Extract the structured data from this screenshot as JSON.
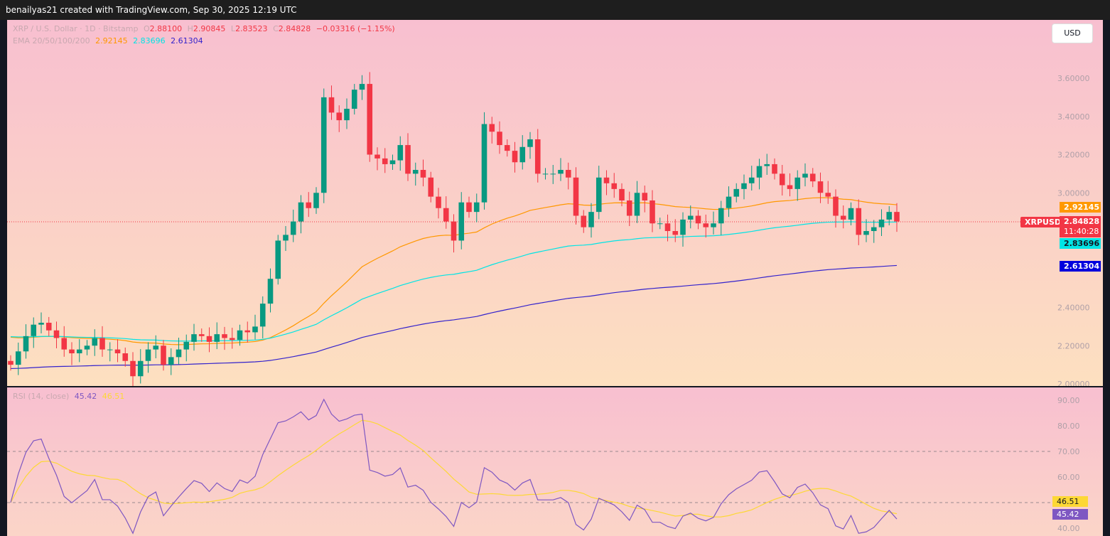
{
  "topbar": {
    "text": "benailyas21 created with TradingView.com, Sep 30, 2025 12:19 UTC"
  },
  "legend": {
    "symbol": "XRP / U.S. Dollar · 1D · Bitstamp",
    "o_label": "O",
    "o": "2.88100",
    "h_label": "H",
    "h": "2.90845",
    "l_label": "L",
    "l": "2.83523",
    "c_label": "C",
    "c": "2.84828",
    "change": "−0.03316 (−1.15%)",
    "ema_label": "EMA 20/50/100/200",
    "ema1": "2.92145",
    "ema2": "2.83696",
    "ema3": "2.61304"
  },
  "currency_button": "USD",
  "tags": {
    "symbol": "XRPUSD",
    "price": "2.84828",
    "countdown": "11:40:28",
    "ema1": "2.92145",
    "ema2": "2.83696",
    "ema3": "2.61304",
    "rsi_ma": "46.51",
    "rsi": "45.42"
  },
  "rsi_legend": {
    "label": "RSI (14, close)",
    "rsi": "45.42",
    "ma": "46.51"
  },
  "colors": {
    "up": "#089981",
    "down": "#f23645",
    "ema50": "#ff9800",
    "ema100": "#00e5e5",
    "ema200": "#3322cc",
    "rsi": "#7e57c2",
    "rsi_ma": "#fdd835"
  },
  "chart_data": [
    {
      "type": "candlestick",
      "title": "XRP / U.S. Dollar · 1D · Bitstamp",
      "ylim": [
        2.0,
        3.7
      ],
      "yticks": [
        "3.60000",
        "3.40000",
        "3.20000",
        "3.00000",
        "2.40000",
        "2.20000",
        "2.00000"
      ],
      "closes": [
        2.1,
        2.17,
        2.25,
        2.31,
        2.32,
        2.28,
        2.24,
        2.18,
        2.16,
        2.18,
        2.2,
        2.24,
        2.18,
        2.18,
        2.16,
        2.12,
        2.04,
        2.12,
        2.18,
        2.2,
        2.1,
        2.14,
        2.18,
        2.22,
        2.26,
        2.25,
        2.22,
        2.26,
        2.24,
        2.23,
        2.28,
        2.27,
        2.3,
        2.42,
        2.55,
        2.75,
        2.78,
        2.85,
        2.95,
        2.92,
        3.0,
        3.5,
        3.42,
        3.38,
        3.44,
        3.54,
        3.57,
        3.2,
        3.18,
        3.15,
        3.17,
        3.25,
        3.1,
        3.12,
        3.08,
        2.98,
        2.92,
        2.85,
        2.75,
        2.95,
        2.9,
        2.95,
        3.36,
        3.32,
        3.25,
        3.22,
        3.16,
        3.24,
        3.28,
        3.1,
        3.1,
        3.1,
        3.12,
        3.08,
        2.88,
        2.82,
        2.9,
        3.08,
        3.05,
        3.02,
        2.96,
        2.88,
        3.0,
        2.96,
        2.84,
        2.84,
        2.8,
        2.78,
        2.86,
        2.88,
        2.84,
        2.82,
        2.84,
        2.92,
        2.98,
        3.02,
        3.05,
        3.08,
        3.14,
        3.15,
        3.1,
        3.04,
        3.02,
        3.08,
        3.1,
        3.06,
        3.0,
        2.98,
        2.88,
        2.86,
        2.92,
        2.78,
        2.8,
        2.82,
        2.86,
        2.9,
        2.85
      ],
      "ema_seeds": {
        "ema50": 2.25,
        "ema100": 2.25,
        "ema200": 2.08
      }
    },
    {
      "type": "line",
      "title": "RSI (14, close)",
      "ylim": [
        38,
        93
      ],
      "yticks": [
        "90.00",
        "80.00",
        "70.00",
        "60.00",
        "40.00"
      ],
      "bands": [
        70,
        50
      ]
    }
  ]
}
